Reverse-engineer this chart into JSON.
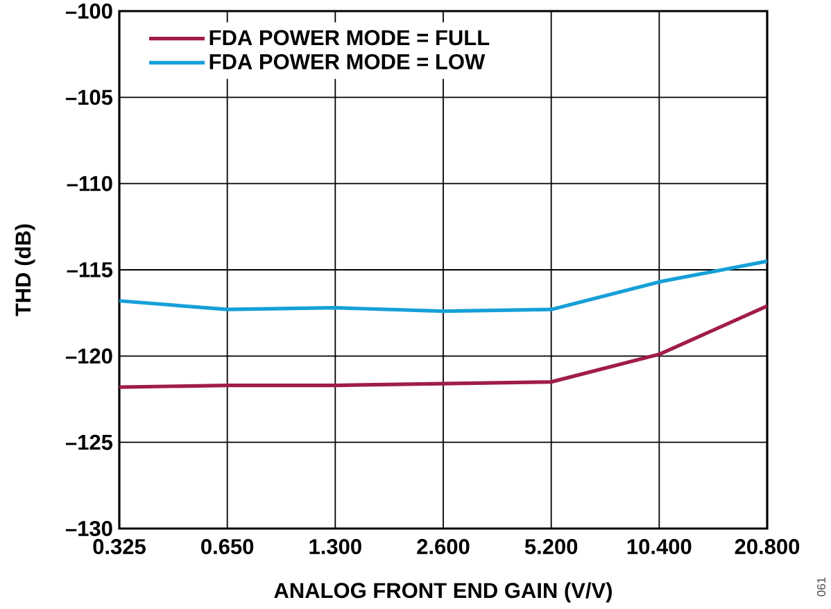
{
  "chart_data": {
    "type": "line",
    "xlabel": "ANALOG FRONT END GAIN (V/V)",
    "ylabel": "THD (dB)",
    "categories": [
      "0.325",
      "0.650",
      "1.300",
      "2.600",
      "5.200",
      "10.400",
      "20.800"
    ],
    "series": [
      {
        "name": "FDA POWER MODE = FULL",
        "color": "#a01c4b",
        "values": [
          -121.8,
          -121.7,
          -121.7,
          -121.6,
          -121.5,
          -119.9,
          -117.1
        ]
      },
      {
        "name": "FDA POWER MODE = LOW",
        "color": "#16a0d8",
        "values": [
          -116.8,
          -117.3,
          -117.2,
          -117.4,
          -117.3,
          -115.7,
          -114.5
        ]
      }
    ],
    "ylim": [
      -130,
      -100
    ],
    "yticks": [
      {
        "value": -130,
        "label": "–130"
      },
      {
        "value": -125,
        "label": "–125"
      },
      {
        "value": -120,
        "label": "–120"
      },
      {
        "value": -115,
        "label": "–115"
      },
      {
        "value": -110,
        "label": "–110"
      },
      {
        "value": -105,
        "label": "–105"
      },
      {
        "value": -100,
        "label": "–100"
      }
    ],
    "grid": true,
    "legend": "top left",
    "annotations": [
      "061"
    ]
  }
}
